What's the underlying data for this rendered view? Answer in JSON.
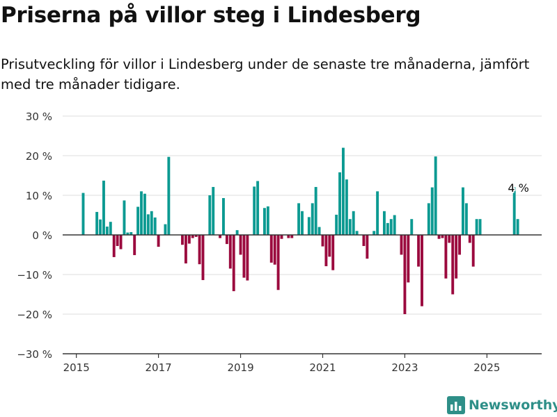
{
  "header": {
    "title": "Priserna på villor steg i Lindesberg",
    "subtitle": "Prisutveckling för villor i Lindesberg under de senaste tre månaderna, jämfört med tre månader tidigare."
  },
  "brand": {
    "name": "Newsworthy",
    "icon": "newsworthy-logo-icon",
    "color": "#2e8f88"
  },
  "chart_data": {
    "type": "bar",
    "x_start": "2015-02",
    "x_step": "month",
    "x_range": [
      "2014-09",
      "2026-05"
    ],
    "xticks": [
      "2015",
      "2017",
      "2019",
      "2021",
      "2023",
      "2025"
    ],
    "yticks": [
      "30 %",
      "20 %",
      "10 %",
      "0 %",
      "−10 %",
      "−20 %",
      "−30 %"
    ],
    "ylim": [
      -30,
      30
    ],
    "grid": true,
    "colors": {
      "positive": "#0c9a92",
      "negative": "#9b0a3e"
    },
    "values": [
      null,
      10.6,
      null,
      null,
      null,
      5.8,
      3.9,
      13.7,
      2.1,
      3.3,
      -5.6,
      -2.8,
      -3.6,
      8.7,
      0.6,
      0.7,
      -5.1,
      7.1,
      11.0,
      10.4,
      5.2,
      6.0,
      4.4,
      -3.0,
      null,
      2.7,
      19.7,
      null,
      null,
      null,
      -2.5,
      -7.2,
      -2.2,
      -0.8,
      -0.5,
      -7.4,
      -11.4,
      null,
      10.0,
      12.1,
      null,
      -0.8,
      9.3,
      -2.3,
      -8.5,
      -14.2,
      1.2,
      -5.0,
      -10.8,
      -11.5,
      null,
      12.2,
      13.6,
      null,
      6.8,
      7.2,
      -7.0,
      -7.5,
      -13.9,
      -1.0,
      null,
      -0.8,
      -0.8,
      null,
      8.0,
      6.0,
      null,
      4.5,
      8.0,
      12.1,
      2.0,
      -2.9,
      -7.9,
      -5.5,
      -8.9,
      5.1,
      15.8,
      22.0,
      14.0,
      4.0,
      6.0,
      1.0,
      null,
      -2.8,
      -6.0,
      null,
      1.0,
      11.0,
      null,
      6.0,
      3.0,
      4.0,
      5.0,
      null,
      -5.0,
      -20.0,
      -12.0,
      4.0,
      null,
      -8.0,
      -18.0,
      null,
      8.0,
      12.0,
      19.8,
      -1.0,
      -0.8,
      -11.0,
      -2.0,
      -15.0,
      -11.0,
      -5.0,
      12.0,
      8.0,
      -2.0,
      -8.0,
      4.0,
      4.0,
      null,
      null,
      null,
      null,
      null,
      null,
      null,
      null,
      null,
      12.0,
      4.0
    ],
    "annotation": {
      "label": "4 %",
      "value": 4
    }
  }
}
